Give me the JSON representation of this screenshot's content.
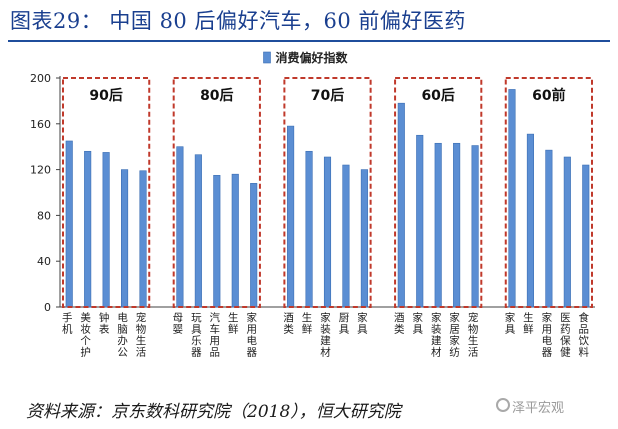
{
  "figure": {
    "title": "图表29：  中国 80 后偏好汽车，60 前偏好医药",
    "source": "资料来源：京东数科研究院（2018），恒大研究院",
    "watermark": "泽平宏观"
  },
  "colors": {
    "bar": "#5b8ed3",
    "bar_edge": "#3a6db3",
    "box": "#c0392b",
    "title": "#1a3f8f"
  },
  "chart_data": {
    "type": "bar",
    "legend": "消费偏好指数",
    "legend_position": "top-center",
    "ylim": [
      0,
      200
    ],
    "yticks": [
      0,
      40,
      80,
      120,
      160,
      200
    ],
    "grid": false,
    "categories": [
      "手机",
      "美妆个护",
      "钟表",
      "电脑办公",
      "宠物生活",
      "",
      "母婴",
      "玩具乐器",
      "汽车用品",
      "生鲜",
      "家用电器",
      "",
      "酒类",
      "生鲜",
      "家装建材",
      "厨具",
      "家具",
      "",
      "酒类",
      "家具",
      "家装建材",
      "家居家纺",
      "宠物生活",
      "",
      "家具",
      "生鲜",
      "家用电器",
      "医药保健",
      "食品饮料"
    ],
    "values": [
      145,
      136,
      135,
      120,
      119,
      null,
      140,
      133,
      115,
      116,
      108,
      null,
      158,
      136,
      131,
      124,
      120,
      null,
      178,
      150,
      143,
      143,
      141,
      null,
      190,
      151,
      137,
      131,
      124
    ],
    "groups": [
      {
        "label": "90后",
        "start": 0,
        "end": 4
      },
      {
        "label": "80后",
        "start": 6,
        "end": 10
      },
      {
        "label": "70后",
        "start": 12,
        "end": 16
      },
      {
        "label": "60后",
        "start": 18,
        "end": 22
      },
      {
        "label": "60前",
        "start": 24,
        "end": 28
      }
    ]
  }
}
